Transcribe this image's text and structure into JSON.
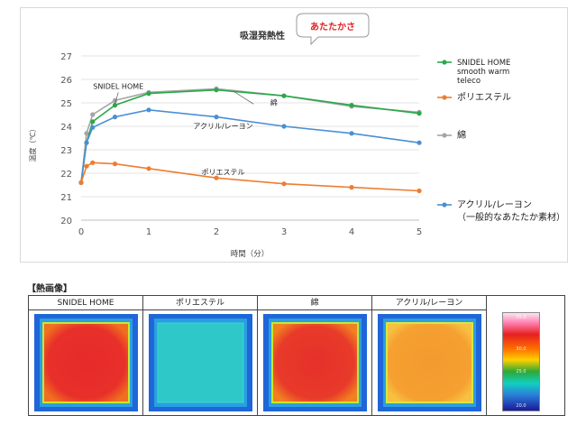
{
  "chart_data": {
    "type": "line",
    "title": "吸湿発熱性",
    "callout": "あたたかさ",
    "xlabel": "時間（分）",
    "ylabel": "温度（℃）",
    "xlim": [
      0,
      5
    ],
    "ylim": [
      20,
      27
    ],
    "xticks": [
      0,
      1,
      2,
      3,
      4,
      5
    ],
    "yticks": [
      20,
      21,
      22,
      23,
      24,
      25,
      26,
      27
    ],
    "grid": "horizontal",
    "legend_position": "right",
    "series": [
      {
        "name": "SNIDEL HOME smooth warm teleco",
        "legend_lines": [
          "SNIDEL HOME",
          "smooth warm",
          "teleco"
        ],
        "color": "#2aa84a",
        "x": [
          0,
          0.08,
          0.17,
          0.5,
          1,
          2,
          3,
          4,
          5
        ],
        "y": [
          21.6,
          23.3,
          24.2,
          24.9,
          25.4,
          25.55,
          25.3,
          24.9,
          24.55
        ]
      },
      {
        "name": "ポリエステル",
        "legend_lines": [
          "ポリエステル"
        ],
        "color": "#ed7d31",
        "x": [
          0,
          0.08,
          0.17,
          0.5,
          1,
          2,
          3,
          4,
          5
        ],
        "y": [
          21.6,
          22.3,
          22.45,
          22.4,
          22.2,
          21.8,
          21.55,
          21.4,
          21.25
        ]
      },
      {
        "name": "綿",
        "legend_lines": [
          "綿"
        ],
        "color": "#a5a5a5",
        "x": [
          0,
          0.08,
          0.17,
          0.5,
          1,
          2,
          3,
          4,
          5
        ],
        "y": [
          21.6,
          23.7,
          24.5,
          25.1,
          25.45,
          25.6,
          25.3,
          24.85,
          24.6
        ]
      },
      {
        "name": "アクリル/レーヨン（一般的なあたたか素材）",
        "legend_lines": [
          "アクリル/レーヨン",
          "（一般的なあたたか素材）"
        ],
        "color": "#4a8fd4",
        "x": [
          0,
          0.08,
          0.17,
          0.5,
          1,
          2,
          3,
          4,
          5
        ],
        "y": [
          21.6,
          23.3,
          23.95,
          24.4,
          24.7,
          24.4,
          24.0,
          23.7,
          23.3
        ]
      }
    ],
    "annotations": [
      {
        "text": "SNIDEL HOME",
        "x": 0.55,
        "y": 25.6
      },
      {
        "text": "綿",
        "x": 2.85,
        "y": 24.9
      },
      {
        "text": "アクリル/レーヨン",
        "x": 2.1,
        "y": 23.9
      },
      {
        "text": "ポリエステル",
        "x": 2.1,
        "y": 21.95
      }
    ]
  },
  "thermal": {
    "section_label": "【熱画像】",
    "columns": [
      {
        "label": "SNIDEL HOME",
        "level": "hot"
      },
      {
        "label": "ポリエステル",
        "level": "cool"
      },
      {
        "label": "綿",
        "level": "hot"
      },
      {
        "label": "アクリル/レーヨン",
        "level": "warm"
      }
    ],
    "scale": {
      "ticks": [
        "35.0",
        "",
        "",
        "30.0",
        "",
        "25.0",
        "",
        "",
        "20.0"
      ]
    },
    "colors": {
      "hot_center": "#e8302a",
      "hot_edge": "#ff8a00",
      "warm_center": "#f5a030",
      "cool_center": "#2ec8c8",
      "background": "#1f66d8",
      "outline": "#c6e830"
    }
  }
}
